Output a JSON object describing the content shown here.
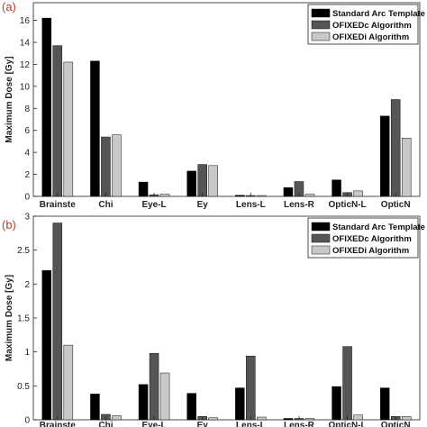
{
  "chart_data": [
    {
      "type": "bar",
      "panel_label": "(a)",
      "ylabel": "Maximum Dose [Gy]",
      "ylim": [
        0,
        17.6
      ],
      "yticks": [
        0,
        2,
        4,
        6,
        8,
        10,
        12,
        14,
        16
      ],
      "legend_position": "top-right",
      "categories": [
        "Brainstem",
        "Chiasm",
        "Eye-L",
        "Eye-R",
        "Lens-L",
        "Lens-R",
        "OpticN-L",
        "OpticN-R"
      ],
      "category_labels": [
        "Brainste",
        "Chi",
        "Eye-L",
        "Ey",
        "Lens-L",
        "Lens-R",
        "OpticN-L",
        "OpticN"
      ],
      "series": [
        {
          "name": "Standard Arc Template",
          "color": "#000000",
          "values": [
            16.2,
            12.3,
            1.3,
            2.3,
            0.1,
            0.8,
            1.5,
            7.3
          ]
        },
        {
          "name": "OFIXEDc Algorithm",
          "color": "#555555",
          "values": [
            13.7,
            5.4,
            0.15,
            2.9,
            0.08,
            1.35,
            0.35,
            8.8
          ]
        },
        {
          "name": "OFIXEDi Algorithm",
          "color": "#c8c8c8",
          "values": [
            12.2,
            5.6,
            0.2,
            2.8,
            0.08,
            0.2,
            0.5,
            5.3
          ]
        }
      ]
    },
    {
      "type": "bar",
      "panel_label": "(b)",
      "ylabel": "Maximum Dose [Gy]",
      "ylim": [
        0,
        3
      ],
      "yticks": [
        0,
        0.5,
        1,
        1.5,
        2,
        2.5,
        3
      ],
      "legend_position": "top-right",
      "categories": [
        "Brainstem",
        "Chiasm",
        "Eye-L",
        "Eye-R",
        "Lens-L",
        "Lens-R",
        "OpticN-L",
        "OpticN-R"
      ],
      "category_labels": [
        "Brainste",
        "Chi",
        "Eye-L",
        "Ey",
        "Lens-L",
        "Lens-R",
        "OpticN-L",
        "OpticN"
      ],
      "series": [
        {
          "name": "Standard Arc Template",
          "color": "#000000",
          "values": [
            2.2,
            0.38,
            0.52,
            0.39,
            0.47,
            0.02,
            0.49,
            0.47
          ]
        },
        {
          "name": "OFIXEDc Algorithm",
          "color": "#555555",
          "values": [
            2.9,
            0.08,
            0.98,
            0.05,
            0.94,
            0.02,
            1.08,
            0.05
          ]
        },
        {
          "name": "OFIXEDi Algorithm",
          "color": "#c8c8c8",
          "values": [
            1.1,
            0.06,
            0.69,
            0.03,
            0.04,
            0.02,
            0.07,
            0.05
          ]
        }
      ]
    }
  ]
}
